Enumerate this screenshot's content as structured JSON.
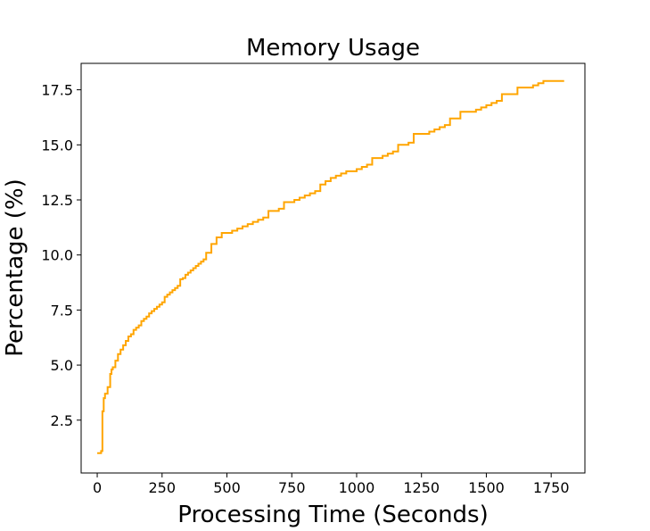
{
  "chart_data": {
    "type": "line",
    "title": "Memory Usage",
    "xlabel": "Processing Time (Seconds)",
    "ylabel": "Percentage (%)",
    "xlim": [
      -62,
      1880
    ],
    "ylim": [
      0.1,
      18.7
    ],
    "x_ticks": [
      0,
      250,
      500,
      750,
      1000,
      1250,
      1500,
      1750
    ],
    "x_tick_labels": [
      "0",
      "250",
      "500",
      "750",
      "1000",
      "1250",
      "1500",
      "1750"
    ],
    "y_ticks": [
      2.5,
      5.0,
      7.5,
      10.0,
      12.5,
      15.0,
      17.5
    ],
    "y_tick_labels": [
      "2.5",
      "5.0",
      "7.5",
      "10.0",
      "12.5",
      "15.0",
      "17.5"
    ],
    "grid": false,
    "series": [
      {
        "color": "#ffa500",
        "step": true,
        "x": [
          0,
          15,
          20,
          25,
          30,
          40,
          50,
          55,
          60,
          70,
          80,
          90,
          100,
          110,
          120,
          130,
          140,
          150,
          160,
          170,
          180,
          190,
          200,
          210,
          220,
          230,
          240,
          250,
          260,
          270,
          280,
          290,
          300,
          310,
          320,
          330,
          340,
          350,
          360,
          370,
          380,
          390,
          400,
          410,
          420,
          430,
          440,
          450,
          460,
          480,
          500,
          520,
          540,
          560,
          580,
          600,
          620,
          640,
          660,
          680,
          700,
          720,
          740,
          760,
          780,
          800,
          820,
          840,
          860,
          880,
          900,
          920,
          940,
          960,
          980,
          1000,
          1020,
          1040,
          1060,
          1080,
          1100,
          1120,
          1140,
          1160,
          1180,
          1200,
          1220,
          1240,
          1260,
          1280,
          1300,
          1320,
          1340,
          1360,
          1380,
          1400,
          1420,
          1440,
          1460,
          1480,
          1500,
          1520,
          1540,
          1560,
          1580,
          1600,
          1620,
          1640,
          1660,
          1680,
          1700,
          1720,
          1740,
          1760,
          1780,
          1800
        ],
        "y": [
          1.0,
          1.1,
          2.9,
          3.5,
          3.7,
          4.0,
          4.6,
          4.8,
          4.9,
          5.2,
          5.5,
          5.7,
          5.9,
          6.1,
          6.3,
          6.4,
          6.6,
          6.7,
          6.8,
          7.0,
          7.1,
          7.2,
          7.35,
          7.45,
          7.55,
          7.65,
          7.75,
          7.85,
          8.1,
          8.2,
          8.3,
          8.4,
          8.5,
          8.6,
          8.9,
          8.95,
          9.1,
          9.2,
          9.3,
          9.4,
          9.5,
          9.6,
          9.7,
          9.8,
          10.1,
          10.1,
          10.5,
          10.5,
          10.8,
          11.0,
          11.0,
          11.1,
          11.2,
          11.3,
          11.4,
          11.5,
          11.6,
          11.7,
          12.0,
          12.0,
          12.1,
          12.4,
          12.4,
          12.5,
          12.6,
          12.7,
          12.8,
          12.9,
          13.2,
          13.35,
          13.5,
          13.6,
          13.7,
          13.8,
          13.8,
          13.9,
          14.0,
          14.1,
          14.4,
          14.4,
          14.5,
          14.6,
          14.7,
          15.0,
          15.0,
          15.1,
          15.5,
          15.5,
          15.5,
          15.6,
          15.7,
          15.8,
          15.9,
          16.2,
          16.2,
          16.5,
          16.5,
          16.5,
          16.6,
          16.7,
          16.8,
          16.9,
          17.0,
          17.3,
          17.3,
          17.3,
          17.6,
          17.6,
          17.6,
          17.7,
          17.8,
          17.9,
          17.9,
          17.9,
          17.9,
          17.9
        ]
      }
    ]
  }
}
